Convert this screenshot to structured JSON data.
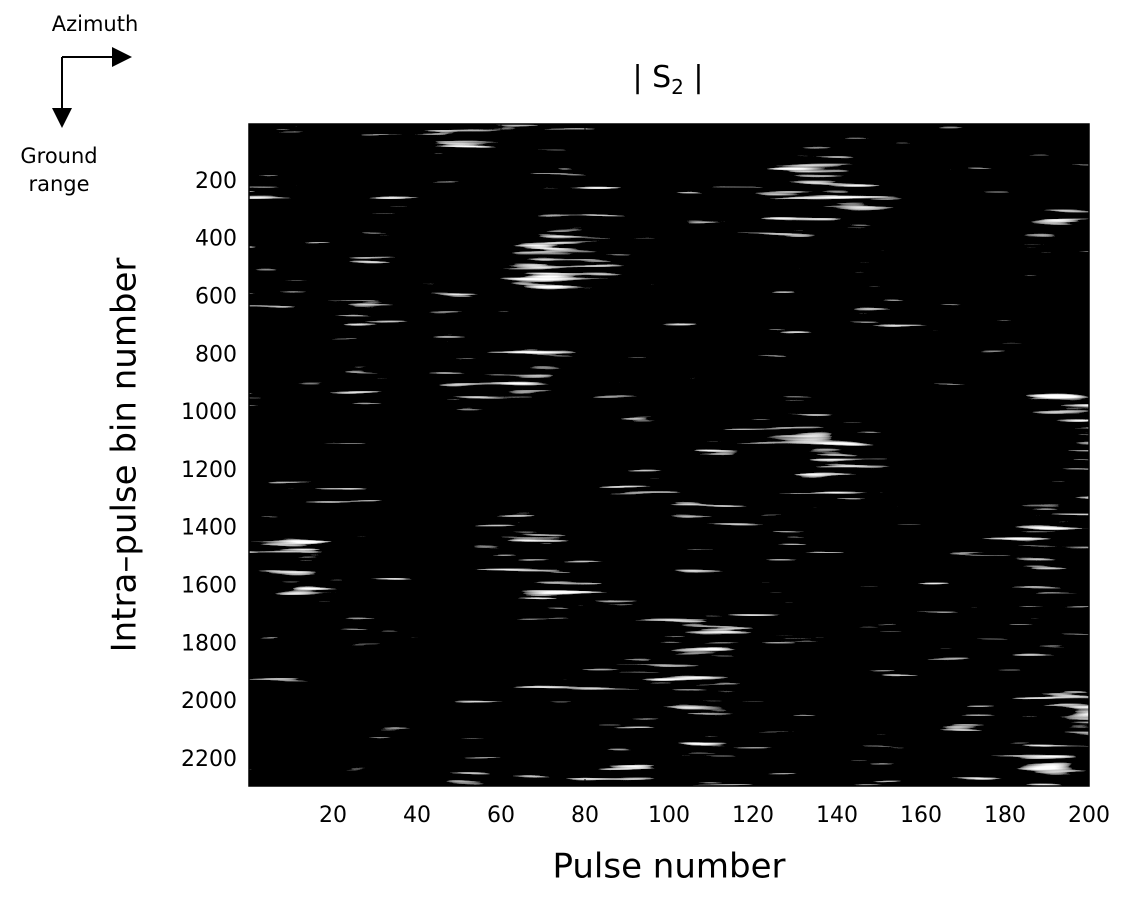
{
  "chart_data": {
    "type": "image",
    "title": {
      "main": "| S",
      "subscript": "2",
      "close": " |"
    },
    "x_label": "Pulse number",
    "y_label": "Intra–pulse bin number",
    "annotations": [
      "Azimuth",
      "Ground range"
    ],
    "xlim": [
      0,
      200
    ],
    "xticks": [
      20,
      40,
      60,
      80,
      100,
      120,
      140,
      160,
      180,
      200
    ],
    "ylim": [
      0,
      2290
    ],
    "y_reversed": true,
    "yticks": [
      200,
      400,
      600,
      800,
      1000,
      1200,
      1400,
      1600,
      1800,
      2000,
      2200
    ],
    "colormap": "gray"
  }
}
